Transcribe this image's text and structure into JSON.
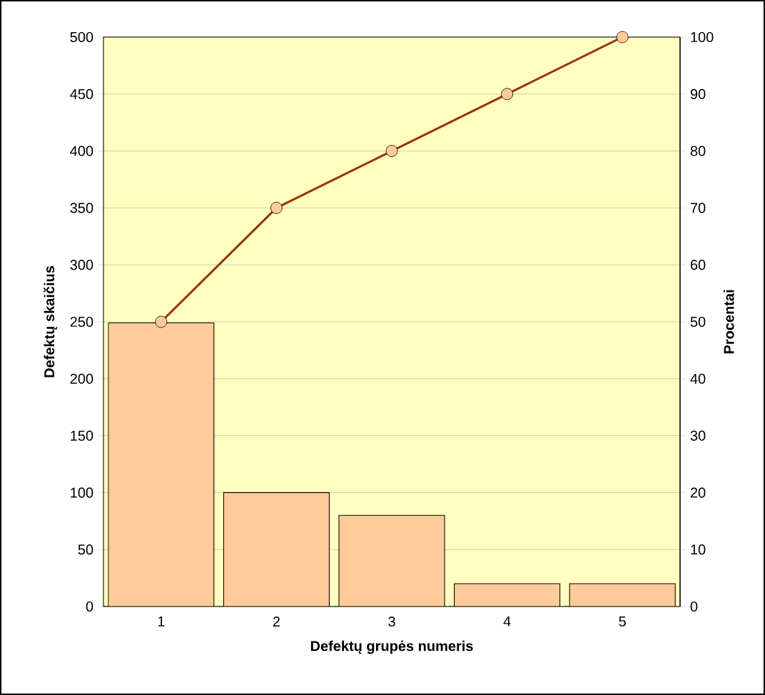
{
  "chart_data": {
    "type": "bar",
    "xlabel": "Defektų grupės numeris",
    "ylabel": "Defektų skaičius",
    "y2label": "Procentai",
    "categories": [
      "1",
      "2",
      "3",
      "4",
      "5"
    ],
    "series": [
      {
        "color": "#ffcc99",
        "values": [
          249,
          100,
          80,
          20,
          20
        ]
      },
      {
        "type": "line",
        "axis": "y2",
        "color": "#993300",
        "values": [
          50,
          70,
          80,
          90,
          100
        ]
      }
    ],
    "ylim": [
      0,
      500
    ],
    "yticks": [
      0,
      50,
      100,
      150,
      200,
      250,
      300,
      350,
      400,
      450,
      500
    ],
    "y2lim": [
      0,
      100
    ],
    "y2ticks": [
      0,
      10,
      20,
      30,
      40,
      50,
      60,
      70,
      80,
      90,
      100
    ],
    "grid": "y",
    "marker": "circle",
    "line_style": "solid"
  }
}
